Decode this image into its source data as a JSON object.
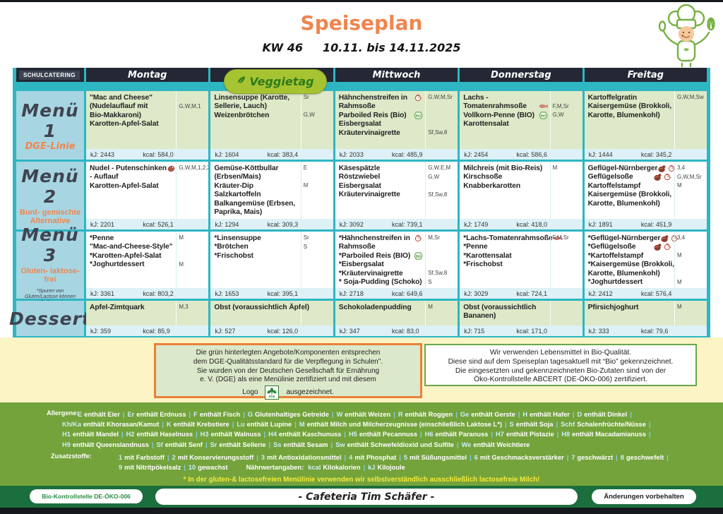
{
  "header": {
    "title": "Speiseplan",
    "week": "KW 46",
    "date_range": "10.11. bis 14.11.2025",
    "brand": "SCHULCATERING",
    "veggie_badge": "Veggietag"
  },
  "days": [
    "Montag",
    "",
    "Mittwoch",
    "Donnerstag",
    "Freitag"
  ],
  "menu": {
    "rows": [
      {
        "id": "menu1",
        "label": "Menü 1",
        "sublabel": "DGE-Linie",
        "note": "",
        "highlight": true,
        "cells": [
          {
            "dishes": [
              {
                "text": "\"Mac and Cheese\""
              },
              {
                "text": "(Nudelauflauf mit"
              },
              {
                "text": "Bio-Makkaroni)"
              },
              {
                "text": "Karotten-Apfel-Salat"
              }
            ],
            "allergens": [
              {
                "code": "G,W,M,1",
                "row": 1
              }
            ],
            "kj": "kJ: 2443",
            "kcal": "kcal: 584,0"
          },
          {
            "dishes": [
              {
                "text": "Linsensuppe (Karotte,"
              },
              {
                "text": "Sellerie, Lauch)"
              },
              {
                "text": "Weizenbrötchen"
              }
            ],
            "allergens": [
              {
                "code": "Sr",
                "row": 0
              },
              {
                "code": "G,W",
                "row": 2
              }
            ],
            "kj": "kJ: 1604",
            "kcal": "kcal: 383,4"
          },
          {
            "dishes": [
              {
                "text": "Hähnchenstreifen in",
                "icons": [
                  "poultry"
                ]
              },
              {
                "text": "Rahmsoße"
              },
              {
                "text": "Parboiled Reis (Bio)",
                "icons": [
                  "bio"
                ]
              },
              {
                "text": "Eisbergsalat"
              },
              {
                "text": "Kräutervinaigrette"
              }
            ],
            "allergens": [
              {
                "code": "G,W,M,Sr",
                "row": 0
              },
              {
                "code": "Sf,Sw,8",
                "row": 4
              }
            ],
            "kj": "kJ: 2033",
            "kcal": "kcal: 485,9"
          },
          {
            "dishes": [
              {
                "text": "Lachs -"
              },
              {
                "text": "Tomatenrahmsoße",
                "icons": [
                  "fish"
                ]
              },
              {
                "text": "Vollkorn-Penne (BIO)",
                "icons": [
                  "bio"
                ]
              },
              {
                "text": "Karottensalat"
              }
            ],
            "allergens": [
              {
                "code": "F,M,Sr",
                "row": 1
              },
              {
                "code": "G,W",
                "row": 2
              }
            ],
            "kj": "kJ: 2454",
            "kcal": "kcal: 586,6"
          },
          {
            "dishes": [
              {
                "text": "Kartoffelgratin"
              },
              {
                "text": "Kaisergemüse (Brokkoli,"
              },
              {
                "text": "Karotte, Blumenkohl)"
              }
            ],
            "allergens": [
              {
                "code": "G,W,M,Sw",
                "row": 0
              }
            ],
            "kj": "kJ: 1444",
            "kcal": "kcal: 345,2"
          }
        ]
      },
      {
        "id": "menu2",
        "label": "Menü 2",
        "sublabel": "Bunt- gemischte Alternative",
        "note": "",
        "highlight": false,
        "cells": [
          {
            "dishes": [
              {
                "text": "Nudel - Putenschinken",
                "icons": [
                  "ham"
                ]
              },
              {
                "text": "- Auflauf"
              },
              {
                "text": "Karotten-Apfel-Salat"
              }
            ],
            "allergens": [
              {
                "code": "G,W,M,1,2,3,4",
                "row": 0
              }
            ],
            "kj": "kJ: 2201",
            "kcal": "kcal: 526,1"
          },
          {
            "dishes": [
              {
                "text": "Gemüse-Köttbullar"
              },
              {
                "text": "(Erbsen/Mais)"
              },
              {
                "text": "Kräuter-Dip"
              },
              {
                "text": "Salzkartoffeln"
              },
              {
                "text": "Balkangemüse (Erbsen,"
              },
              {
                "text": "Paprika, Mais)"
              }
            ],
            "allergens": [
              {
                "code": "E",
                "row": 0
              },
              {
                "code": "M",
                "row": 2
              }
            ],
            "kj": "kJ: 1294",
            "kcal": "kcal: 309,3"
          },
          {
            "dishes": [
              {
                "text": "Käsespätzle"
              },
              {
                "text": "Röstzwiebel"
              },
              {
                "text": "Eisbergsalat"
              },
              {
                "text": "Kräutervinaigrette"
              }
            ],
            "allergens": [
              {
                "code": "G,W,E,M",
                "row": 0
              },
              {
                "code": "G,W",
                "row": 1
              },
              {
                "code": "Sf,Sw,8",
                "row": 3
              }
            ],
            "kj": "kJ: 3092",
            "kcal": "kcal: 739,1"
          },
          {
            "dishes": [
              {
                "text": "Milchreis (mit Bio-Reis)"
              },
              {
                "text": "Kirschsoße"
              },
              {
                "text": "Knabberkarotten"
              }
            ],
            "allergens": [
              {
                "code": "M",
                "row": 0
              }
            ],
            "kj": "kJ: 1749",
            "kcal": "kcal: 418,0"
          },
          {
            "dishes": [
              {
                "text": "Geflügel-Nürnberger",
                "icons": [
                  "turkey",
                  "poultry"
                ]
              },
              {
                "text": "Geflügelsoße",
                "icons": [
                  "turkey",
                  "poultry"
                ]
              },
              {
                "text": "Kartoffelstampf"
              },
              {
                "text": "Kaisergemüse (Brokkoli,"
              },
              {
                "text": "Karotte, Blumenkohl)"
              }
            ],
            "allergens": [
              {
                "code": "3,4",
                "row": 0
              },
              {
                "code": "G,W,M,Sr",
                "row": 1
              },
              {
                "code": "M",
                "row": 2
              }
            ],
            "kj": "kJ: 1891",
            "kcal": "kcal: 451,9"
          }
        ]
      },
      {
        "id": "menu3",
        "label": "Menü 3",
        "sublabel": "Gluten- laktose-frei",
        "note": "*Spuren von Gluten/Lactose können enthalten sein",
        "highlight": false,
        "cells": [
          {
            "dishes": [
              {
                "text": "*Penne"
              },
              {
                "text": "\"Mac-and-Cheese-Style\""
              },
              {
                "text": "*Karotten-Apfel-Salat"
              },
              {
                "text": "*Joghurtdessert"
              }
            ],
            "allergens": [
              {
                "code": "M",
                "row": 0
              },
              {
                "code": "M",
                "row": 3
              }
            ],
            "kj": "kJ: 3361",
            "kcal": "kcal: 803,2"
          },
          {
            "dishes": [
              {
                "text": "*Linsensuppe"
              },
              {
                "text": "*Brötchen"
              },
              {
                "text": "*Frischobst"
              }
            ],
            "allergens": [
              {
                "code": "Sr",
                "row": 0
              },
              {
                "code": "S",
                "row": 1
              }
            ],
            "kj": "kJ: 1653",
            "kcal": "kcal: 395,1"
          },
          {
            "dishes": [
              {
                "text": "*Hähnchenstreifen in",
                "icons": [
                  "poultry"
                ]
              },
              {
                "text": "Rahmsoße"
              },
              {
                "text": "*Parboiled Reis (BIO)",
                "icons": [
                  "bio"
                ]
              },
              {
                "text": "*Eisbergsalat"
              },
              {
                "text": "*Kräutervinaigrette"
              },
              {
                "text": "* Soja-Pudding (Schoko)"
              }
            ],
            "allergens": [
              {
                "code": "M,Sr",
                "row": 0
              },
              {
                "code": "Sf,Sw,8",
                "row": 4
              },
              {
                "code": "S",
                "row": 5
              }
            ],
            "kj": "kJ: 2718",
            "kcal": "kcal: 649,6"
          },
          {
            "dishes": [
              {
                "text": "*Lachs-Tomatenrahmsoße",
                "icons": [
                  "fish"
                ]
              },
              {
                "text": "*Penne"
              },
              {
                "text": "*Karottensalat"
              },
              {
                "text": "*Frischobst"
              }
            ],
            "allergens": [
              {
                "code": "F,M,Sr",
                "row": 0
              }
            ],
            "kj": "kJ: 3029",
            "kcal": "kcal: 724,1"
          },
          {
            "dishes": [
              {
                "text": "*Geflügel-Nürnberger",
                "icons": [
                  "turkey",
                  "poultry"
                ]
              },
              {
                "text": "*Geflügelsoße",
                "icons": [
                  "turkey",
                  "poultry"
                ]
              },
              {
                "text": "*Kartoffelstampf"
              },
              {
                "text": "*Kaisergemüse (Brokkoli,"
              },
              {
                "text": "Karotte, Blumenkohl)"
              },
              {
                "text": "*Joghurtdessert"
              }
            ],
            "allergens": [
              {
                "code": "3,4",
                "row": 0
              },
              {
                "code": "M",
                "row": 2
              },
              {
                "code": "M",
                "row": 5
              }
            ],
            "kj": "kJ: 2412",
            "kcal": "kcal: 576,4"
          }
        ]
      },
      {
        "id": "dessert",
        "label": "Dessert",
        "sublabel": "",
        "note": "",
        "highlight": true,
        "cells": [
          {
            "dishes": [
              {
                "text": "Apfel-Zimtquark"
              }
            ],
            "allergens": [
              {
                "code": "M,3",
                "row": 0
              }
            ],
            "kj": "kJ: 359",
            "kcal": "kcal: 85,9"
          },
          {
            "dishes": [
              {
                "text": "Obst (voraussichtlich Äpfel)"
              }
            ],
            "allergens": [],
            "kj": "kJ: 527",
            "kcal": "kcal: 126,0"
          },
          {
            "dishes": [
              {
                "text": "Schokoladenpudding"
              }
            ],
            "allergens": [
              {
                "code": "M",
                "row": 0
              }
            ],
            "kj": "kJ: 347",
            "kcal": "kcal: 83,0"
          },
          {
            "dishes": [
              {
                "text": "Obst (voraussichtlich"
              },
              {
                "text": "Bananen)"
              }
            ],
            "allergens": [],
            "kj": "kJ: 715",
            "kcal": "kcal: 171,0"
          },
          {
            "dishes": [
              {
                "text": "Pfirsichjoghurt"
              }
            ],
            "allergens": [
              {
                "code": "M",
                "row": 0
              }
            ],
            "kj": "kJ: 333",
            "kcal": "kcal: 79,6"
          }
        ]
      }
    ]
  },
  "dge_box": {
    "lines": [
      "Die grün hinterlegten Angebote/Komponenten entsprechen",
      "dem DGE-Qualitätsstandard für die Verpflegung in Schulen\".",
      "Sie wurden von der Deutschen Gesellschaft für Ernährung",
      "e. V. (DGE) als eine Menülinie zertifiziert und mit diesem"
    ],
    "logo_line_before": "Logo",
    "logo_text": "DGE",
    "logo_line_after": "ausgezeichnet."
  },
  "bio_box": {
    "lines": [
      "Wir verwenden Lebensmittel in Bio-Qualität.",
      "Diese sind auf dem Speiseplan tagesaktuell mit “Bio” gekennzeichnet.",
      "Die eingesetzten und gekennzeichneten Bio-Zutaten sind von der",
      "Öko-Kontrollstelle ABCERT (DE-ÖKO-006) zertifiziert."
    ]
  },
  "legend": {
    "allergens_label": "Allergene:",
    "allergen_lines": [
      [
        {
          "c": "E",
          "d": "enthält Eier"
        },
        {
          "c": "Er",
          "d": "enthält Erdnuss"
        },
        {
          "c": "F",
          "d": "enthält Fisch"
        },
        {
          "c": "G",
          "d": "Glutenhaltiges Getreide"
        },
        {
          "c": "W",
          "d": "enthält Weizen"
        },
        {
          "c": "R",
          "d": "enthält Roggen"
        },
        {
          "c": "Ge",
          "d": "enthält Gerste"
        },
        {
          "c": "H",
          "d": "enthält Hafer"
        },
        {
          "c": "D",
          "d": "enthält Dinkel"
        }
      ],
      [
        {
          "c": "Kh/Ka",
          "d": "enthält Khorasan/Kamut"
        },
        {
          "c": "K",
          "d": "enthält Krebstiere"
        },
        {
          "c": "Lu",
          "d": "enthält Lupine"
        },
        {
          "c": "M",
          "d": "enthält Milch und Milcherzeugnisse (einschließlich Laktose L*)"
        },
        {
          "c": "S",
          "d": "enthält Soja"
        },
        {
          "c": "Schf",
          "d": "Schalenfrüchte/Nüsse"
        }
      ],
      [
        {
          "c": "H1",
          "d": "enthält Mandel"
        },
        {
          "c": "H2",
          "d": "enthält Haselnuss"
        },
        {
          "c": "H3",
          "d": "enthält Walnuss"
        },
        {
          "c": "H4",
          "d": "enthält Kaschunuss"
        },
        {
          "c": "H5",
          "d": "enthält Pecannuss"
        },
        {
          "c": "H6",
          "d": "enthält Paranuss"
        },
        {
          "c": "H7",
          "d": "enthält Pistazie"
        },
        {
          "c": "H8",
          "d": "enthält Macadamianuss"
        }
      ],
      [
        {
          "c": "H9",
          "d": "enthält Queenslandnuss"
        },
        {
          "c": "Sf",
          "d": "enthält Senf"
        },
        {
          "c": "Sr",
          "d": "enthält Sellerie"
        },
        {
          "c": "Ss",
          "d": "enthält Sesam"
        },
        {
          "c": "Sw",
          "d": "enthält Schwefeldioxid und Sulfite"
        },
        {
          "c": "We",
          "d": "enthält Weichtiere"
        }
      ]
    ],
    "additives_label": "Zusatzstoffe:",
    "additive_lines": [
      [
        {
          "c": "1",
          "d": "mit Farbstoff"
        },
        {
          "c": "2",
          "d": "mit Konservierungsstoff"
        },
        {
          "c": "3",
          "d": "mit Antioxidationsmittel"
        },
        {
          "c": "4",
          "d": "mit Phosphat"
        },
        {
          "c": "5",
          "d": "mit Süßungsmittel"
        },
        {
          "c": "6",
          "d": "mit Geschmacksverstärker"
        },
        {
          "c": "7",
          "d": "geschwärzt"
        },
        {
          "c": "8",
          "d": "geschwefelt"
        }
      ],
      [
        {
          "c": "9",
          "d": "mit Nitritpökelsalz"
        },
        {
          "c": "10",
          "d": "gewachst"
        }
      ]
    ],
    "nutrition_label": "Nährwertangaben:",
    "nutrition": [
      {
        "c": "kcal",
        "d": "Kilokalorien"
      },
      {
        "c": "kJ",
        "d": "Kilojoule"
      }
    ],
    "note": "* In der gluten-& lactosefreien Menülinie verwenden wir selbstverständlich ausschließlich lactosefreie Milch!"
  },
  "footer": {
    "bio_control": "Bio-Kontrollstelle DE-ÖKO-006",
    "cafeteria": "- Cafeteria Tim Schäfer -",
    "changes": "Änderungen vorbehalten"
  }
}
